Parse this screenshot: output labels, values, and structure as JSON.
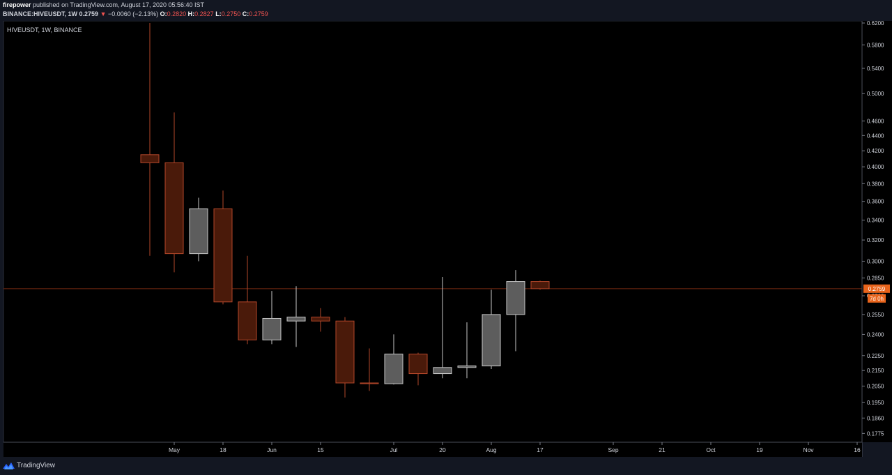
{
  "header": {
    "author": "firepower",
    "published_text": "published on TradingView.com, August 17, 2020 05:56:40 IST",
    "symbol_full": "BINANCE:HIVEUSDT, 1W",
    "last": "0.2759",
    "change": "−0.0060 (−2.13%)",
    "o_label": "O:",
    "o_val": "0.2820",
    "h_label": "H:",
    "h_val": "0.2827",
    "l_label": "L:",
    "l_val": "0.2750",
    "c_label": "C:",
    "c_val": "0.2759"
  },
  "chart_legend": "HIVEUSDT, 1W, BINANCE",
  "footer": {
    "brand": "TradingView"
  },
  "colors": {
    "background": "#000000",
    "page_background": "#131722",
    "up_fill": "#5d5d5d",
    "up_border": "#c8c8c8",
    "down_fill": "#4a1a0a",
    "down_border": "#b4472a",
    "price_label_bg": "#e8641c",
    "price_line": "#7a2a10"
  },
  "chart_data": {
    "type": "candlestick",
    "symbol": "HIVEUSDT",
    "interval": "1W",
    "exchange": "BINANCE",
    "y_scale": "log",
    "ylim": [
      0.175,
      0.62
    ],
    "y_ticks": [
      {
        "v": 0.62,
        "label": "0.6200"
      },
      {
        "v": 0.58,
        "label": "0.5800"
      },
      {
        "v": 0.54,
        "label": "0.5400"
      },
      {
        "v": 0.5,
        "label": "0.5000"
      },
      {
        "v": 0.46,
        "label": "0.4600"
      },
      {
        "v": 0.44,
        "label": "0.4400"
      },
      {
        "v": 0.42,
        "label": "0.4200"
      },
      {
        "v": 0.4,
        "label": "0.4000"
      },
      {
        "v": 0.38,
        "label": "0.3800"
      },
      {
        "v": 0.36,
        "label": "0.3600"
      },
      {
        "v": 0.34,
        "label": "0.3400"
      },
      {
        "v": 0.32,
        "label": "0.3200"
      },
      {
        "v": 0.3,
        "label": "0.3000"
      },
      {
        "v": 0.285,
        "label": "0.2850"
      },
      {
        "v": 0.27,
        "label": "0.2700"
      },
      {
        "v": 0.255,
        "label": "0.2550"
      },
      {
        "v": 0.24,
        "label": "0.2400"
      },
      {
        "v": 0.225,
        "label": "0.2250"
      },
      {
        "v": 0.215,
        "label": "0.2150"
      },
      {
        "v": 0.205,
        "label": "0.2050"
      },
      {
        "v": 0.195,
        "label": "0.1950"
      },
      {
        "v": 0.186,
        "label": "0.1860"
      },
      {
        "v": 0.1775,
        "label": "0.1775"
      }
    ],
    "x_labels": [
      {
        "i": 1.0,
        "label": "May"
      },
      {
        "i": 3.0,
        "label": "18"
      },
      {
        "i": 5.0,
        "label": "Jun"
      },
      {
        "i": 7.0,
        "label": "15"
      },
      {
        "i": 10.0,
        "label": "Jul"
      },
      {
        "i": 12.0,
        "label": "20"
      },
      {
        "i": 14.0,
        "label": "Aug"
      },
      {
        "i": 16.0,
        "label": "17"
      },
      {
        "i": 19.0,
        "label": "Sep"
      },
      {
        "i": 21.0,
        "label": "21"
      },
      {
        "i": 23.0,
        "label": "Oct"
      },
      {
        "i": 25.0,
        "label": "19"
      },
      {
        "i": 27.0,
        "label": "Nov"
      },
      {
        "i": 29.0,
        "label": "16"
      }
    ],
    "candles": [
      {
        "o": 0.415,
        "h": 0.62,
        "l": 0.305,
        "c": 0.405
      },
      {
        "o": 0.405,
        "h": 0.472,
        "l": 0.29,
        "c": 0.307
      },
      {
        "o": 0.307,
        "h": 0.364,
        "l": 0.3,
        "c": 0.352
      },
      {
        "o": 0.352,
        "h": 0.372,
        "l": 0.263,
        "c": 0.265
      },
      {
        "o": 0.265,
        "h": 0.305,
        "l": 0.233,
        "c": 0.236
      },
      {
        "o": 0.236,
        "h": 0.274,
        "l": 0.233,
        "c": 0.252
      },
      {
        "o": 0.25,
        "h": 0.278,
        "l": 0.231,
        "c": 0.253
      },
      {
        "o": 0.253,
        "h": 0.26,
        "l": 0.242,
        "c": 0.25
      },
      {
        "o": 0.25,
        "h": 0.253,
        "l": 0.198,
        "c": 0.207
      },
      {
        "o": 0.207,
        "h": 0.23,
        "l": 0.202,
        "c": 0.2065
      },
      {
        "o": 0.2065,
        "h": 0.24,
        "l": 0.206,
        "c": 0.226
      },
      {
        "o": 0.226,
        "h": 0.227,
        "l": 0.2055,
        "c": 0.213
      },
      {
        "o": 0.213,
        "h": 0.286,
        "l": 0.21,
        "c": 0.217
      },
      {
        "o": 0.217,
        "h": 0.249,
        "l": 0.21,
        "c": 0.218
      },
      {
        "o": 0.218,
        "h": 0.275,
        "l": 0.216,
        "c": 0.255
      },
      {
        "o": 0.255,
        "h": 0.292,
        "l": 0.228,
        "c": 0.282
      },
      {
        "o": 0.282,
        "h": 0.2827,
        "l": 0.275,
        "c": 0.2759
      }
    ],
    "last_price": 0.2759,
    "last_price_label": "0.2759",
    "countdown_label": "7d 0h"
  }
}
